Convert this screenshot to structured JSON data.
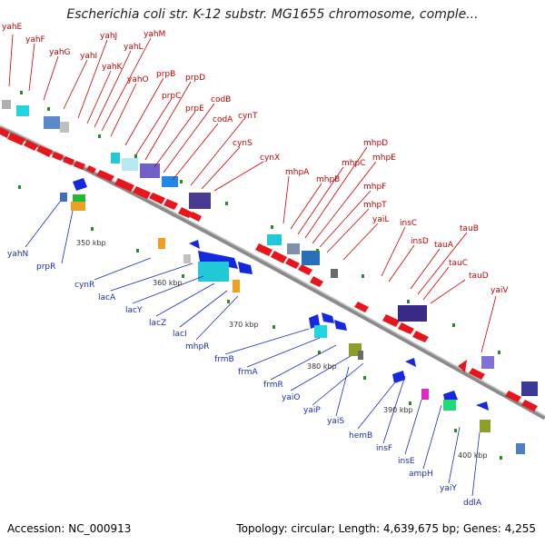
{
  "title": "Escherichia coli str. K-12 substr. MG1655 chromosome, comple...",
  "footer": {
    "accession": "Accession: NC_000913",
    "summary": "Topology: circular; Length: 4,639,675 bp; Genes: 4,255"
  },
  "colors": {
    "forward": "#e8161c",
    "reverse": "#1428e0",
    "backbone": "#8a8a8a",
    "label_forward": "#cc0000",
    "label_reverse": "#1a2cc8"
  },
  "top_labels": [
    "yahE",
    "yahF",
    "yahG",
    "yahI",
    "yahJ",
    "yahK",
    "yahL",
    "yahM",
    "yahO",
    "prpB",
    "prpC",
    "prpD",
    "prpE",
    "codB",
    "codA",
    "cynT",
    "cynS",
    "cynX",
    "mhpA",
    "mhpB",
    "mhpC",
    "mhpD",
    "mhpE",
    "mhpF",
    "mhpT",
    "yaiL",
    "insC",
    "insD",
    "tauA",
    "tauB",
    "tauC",
    "tauD",
    "yaiV"
  ],
  "bottom_labels": [
    "yahN",
    "prpR",
    "cynR",
    "lacA",
    "lacY",
    "lacZ",
    "lacI",
    "mhpR",
    "frmB",
    "frmA",
    "frmR",
    "yaiO",
    "yaiP",
    "yaiS",
    "hemB",
    "insF",
    "insE",
    "ampH",
    "yaiY",
    "ddlA"
  ],
  "scale_labels": [
    "350 kbp",
    "360 kbp",
    "370 kbp",
    "380 kbp",
    "390 kbp",
    "400 kbp"
  ]
}
